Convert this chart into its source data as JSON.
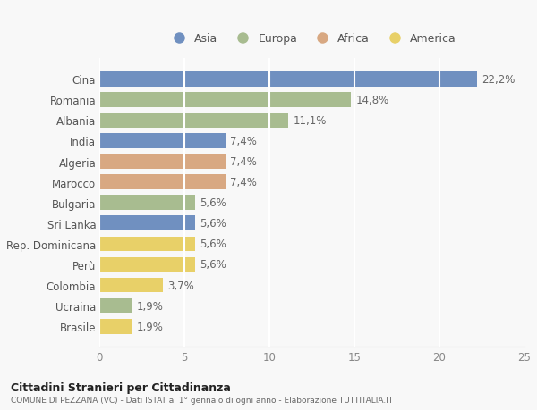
{
  "categories": [
    "Cina",
    "Romania",
    "Albania",
    "India",
    "Algeria",
    "Marocco",
    "Bulgaria",
    "Sri Lanka",
    "Rep. Dominicana",
    "Perù",
    "Colombia",
    "Ucraina",
    "Brasile"
  ],
  "values": [
    22.2,
    14.8,
    11.1,
    7.4,
    7.4,
    7.4,
    5.6,
    5.6,
    5.6,
    5.6,
    3.7,
    1.9,
    1.9
  ],
  "labels": [
    "22,2%",
    "14,8%",
    "11,1%",
    "7,4%",
    "7,4%",
    "7,4%",
    "5,6%",
    "5,6%",
    "5,6%",
    "5,6%",
    "3,7%",
    "1,9%",
    "1,9%"
  ],
  "continents": [
    "Asia",
    "Europa",
    "Europa",
    "Asia",
    "Africa",
    "Africa",
    "Europa",
    "Asia",
    "America",
    "America",
    "America",
    "Europa",
    "America"
  ],
  "colors": {
    "Asia": "#7090c0",
    "Europa": "#a8bc90",
    "Africa": "#d8a882",
    "America": "#e8d068"
  },
  "legend_order": [
    "Asia",
    "Europa",
    "Africa",
    "America"
  ],
  "title": "Cittadini Stranieri per Cittadinanza",
  "subtitle": "COMUNE DI PEZZANA (VC) - Dati ISTAT al 1° gennaio di ogni anno - Elaborazione TUTTITALIA.IT",
  "xlim": [
    0,
    25
  ],
  "xticks": [
    0,
    5,
    10,
    15,
    20,
    25
  ],
  "background_color": "#f8f8f8",
  "bar_height": 0.72,
  "grid_color": "#ffffff",
  "label_color": "#666666",
  "label_fontsize": 8.5
}
